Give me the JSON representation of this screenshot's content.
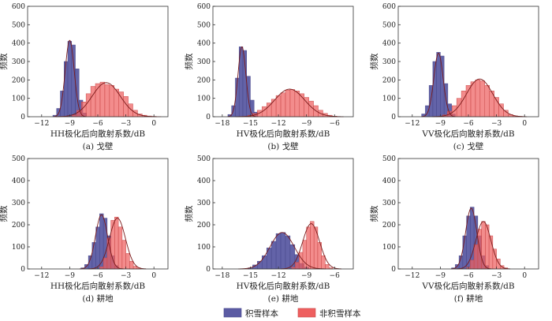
{
  "legend": {
    "items": [
      {
        "label": "积雪样本",
        "color": "#5b5ba3"
      },
      {
        "label": "非积雪样本",
        "color": "#ee5f5f"
      }
    ]
  },
  "colors": {
    "snow_bar": "#5b5ba3",
    "snow_edge": "#46468a",
    "nonsnow_bar": "#ee5f5f",
    "nonsnow_edge": "#c94a4a",
    "fit_curve": "#7a1a1a"
  },
  "chart_data": [
    {
      "type": "bar",
      "caption": "(a) 戈壁",
      "xlabel": "HH极化后向散射系数/dB",
      "ylabel": "频数",
      "xlim": [
        -13.5,
        1.5
      ],
      "ylim": [
        0,
        600
      ],
      "xticks": [
        -12,
        -9,
        -6,
        -3,
        0
      ],
      "yticks": [
        0,
        100,
        200,
        300,
        400,
        500,
        600
      ],
      "series": [
        {
          "name": "积雪样本",
          "bin_width": 0.4,
          "bins": [
            [
              -10.6,
              8
            ],
            [
              -10.2,
              45
            ],
            [
              -9.8,
              140
            ],
            [
              -9.4,
              300
            ],
            [
              -9.0,
              410
            ],
            [
              -8.6,
              390
            ],
            [
              -8.2,
              260
            ],
            [
              -7.8,
              90
            ],
            [
              -7.4,
              20
            ]
          ],
          "fit": {
            "mean": -9.0,
            "sd": 0.48,
            "peak": 415
          }
        },
        {
          "name": "非积雪样本",
          "bin_width": 0.5,
          "bins": [
            [
              -8.5,
              10
            ],
            [
              -8.0,
              35
            ],
            [
              -7.5,
              80
            ],
            [
              -7.0,
              125
            ],
            [
              -6.5,
              165
            ],
            [
              -6.0,
              180
            ],
            [
              -5.5,
              188
            ],
            [
              -5.0,
              175
            ],
            [
              -4.5,
              170
            ],
            [
              -4.0,
              150
            ],
            [
              -3.5,
              135
            ],
            [
              -3.0,
              110
            ],
            [
              -2.5,
              70
            ],
            [
              -2.0,
              35
            ],
            [
              -1.5,
              15
            ],
            [
              -1.0,
              8
            ],
            [
              -0.5,
              4
            ],
            [
              0.0,
              2
            ],
            [
              0.5,
              1
            ]
          ],
          "fit": {
            "mean": -5.1,
            "sd": 1.5,
            "peak": 185
          }
        }
      ]
    },
    {
      "type": "bar",
      "caption": "(b) 戈壁",
      "xlabel": "HV极化后向散射系数/dB",
      "ylabel": "频数",
      "xlim": [
        -19,
        -4
      ],
      "ylim": [
        0,
        600
      ],
      "xticks": [
        -18,
        -15,
        -12,
        -9,
        -6
      ],
      "yticks": [
        0,
        100,
        200,
        300,
        400,
        500,
        600
      ],
      "series": [
        {
          "name": "积雪样本",
          "bin_width": 0.4,
          "bins": [
            [
              -17.2,
              12
            ],
            [
              -16.8,
              60
            ],
            [
              -16.4,
              210
            ],
            [
              -16.0,
              380
            ],
            [
              -15.6,
              360
            ],
            [
              -15.2,
              220
            ],
            [
              -14.8,
              90
            ],
            [
              -14.4,
              25
            ]
          ],
          "fit": {
            "mean": -15.9,
            "sd": 0.42,
            "peak": 380
          }
        },
        {
          "name": "非积雪样本",
          "bin_width": 0.5,
          "bins": [
            [
              -15.0,
              8
            ],
            [
              -14.5,
              18
            ],
            [
              -14.0,
              35
            ],
            [
              -13.5,
              55
            ],
            [
              -13.0,
              75
            ],
            [
              -12.5,
              95
            ],
            [
              -12.0,
              115
            ],
            [
              -11.5,
              130
            ],
            [
              -11.0,
              145
            ],
            [
              -10.5,
              148
            ],
            [
              -10.0,
              140
            ],
            [
              -9.5,
              125
            ],
            [
              -9.0,
              105
            ],
            [
              -8.5,
              85
            ],
            [
              -8.0,
              60
            ],
            [
              -7.5,
              35
            ],
            [
              -7.0,
              18
            ],
            [
              -6.5,
              8
            ],
            [
              -6.0,
              3
            ]
          ],
          "fit": {
            "mean": -10.8,
            "sd": 1.6,
            "peak": 150
          }
        }
      ]
    },
    {
      "type": "bar",
      "caption": "(c) 戈壁",
      "xlabel": "VV极化后向散射系数/dB",
      "ylabel": "频数",
      "xlim": [
        -13.5,
        1.5
      ],
      "ylim": [
        0,
        600
      ],
      "xticks": [
        -12,
        -9,
        -6,
        -3,
        0
      ],
      "yticks": [
        0,
        100,
        200,
        300,
        400,
        500,
        600
      ],
      "series": [
        {
          "name": "积雪样本",
          "bin_width": 0.4,
          "bins": [
            [
              -10.8,
              15
            ],
            [
              -10.4,
              60
            ],
            [
              -10.0,
              170
            ],
            [
              -9.6,
              300
            ],
            [
              -9.2,
              350
            ],
            [
              -8.8,
              330
            ],
            [
              -8.4,
              180
            ],
            [
              -8.0,
              70
            ],
            [
              -7.6,
              15
            ]
          ],
          "fit": {
            "mean": -9.2,
            "sd": 0.5,
            "peak": 345
          }
        },
        {
          "name": "非积雪样本",
          "bin_width": 0.5,
          "bins": [
            [
              -8.5,
              10
            ],
            [
              -8.0,
              30
            ],
            [
              -7.5,
              60
            ],
            [
              -7.0,
              100
            ],
            [
              -6.5,
              140
            ],
            [
              -6.0,
              170
            ],
            [
              -5.5,
              190
            ],
            [
              -5.0,
              200
            ],
            [
              -4.5,
              195
            ],
            [
              -4.0,
              170
            ],
            [
              -3.5,
              140
            ],
            [
              -3.0,
              105
            ],
            [
              -2.5,
              70
            ],
            [
              -2.0,
              35
            ],
            [
              -1.5,
              12
            ],
            [
              -1.0,
              4
            ],
            [
              -0.5,
              2
            ]
          ],
          "fit": {
            "mean": -4.8,
            "sd": 1.4,
            "peak": 205
          }
        }
      ]
    },
    {
      "type": "bar",
      "caption": "(d) 耕地",
      "xlabel": "HH极化后向散射系数/dB",
      "ylabel": "频数",
      "xlim": [
        -13.5,
        1.5
      ],
      "ylim": [
        0,
        500
      ],
      "xticks": [
        -12,
        -9,
        -6,
        -3,
        0
      ],
      "yticks": [
        0,
        100,
        200,
        300,
        400,
        500
      ],
      "series": [
        {
          "name": "积雪样本",
          "bin_width": 0.4,
          "bins": [
            [
              -7.6,
              5
            ],
            [
              -7.2,
              20
            ],
            [
              -6.8,
              60
            ],
            [
              -6.4,
              120
            ],
            [
              -6.0,
              190
            ],
            [
              -5.6,
              250
            ],
            [
              -5.2,
              230
            ],
            [
              -4.8,
              150
            ],
            [
              -4.4,
              60
            ],
            [
              -4.0,
              15
            ]
          ],
          "fit": {
            "mean": -5.6,
            "sd": 0.65,
            "peak": 245
          }
        },
        {
          "name": "非积雪样本",
          "bin_width": 0.4,
          "bins": [
            [
              -5.6,
              10
            ],
            [
              -5.2,
              50
            ],
            [
              -4.8,
              140
            ],
            [
              -4.4,
              220
            ],
            [
              -4.0,
              235
            ],
            [
              -3.6,
              190
            ],
            [
              -3.2,
              130
            ],
            [
              -2.8,
              70
            ],
            [
              -2.4,
              35
            ],
            [
              -2.0,
              12
            ],
            [
              -1.6,
              4
            ]
          ],
          "fit": {
            "mean": -3.9,
            "sd": 0.85,
            "peak": 230
          }
        }
      ]
    },
    {
      "type": "bar",
      "caption": "(e) 耕地",
      "xlabel": "HV极化后向散射系数/dB",
      "ylabel": "频数",
      "xlim": [
        -19,
        -4
      ],
      "ylim": [
        0,
        500
      ],
      "xticks": [
        -18,
        -15,
        -12,
        -9,
        -6
      ],
      "yticks": [
        0,
        100,
        200,
        300,
        400,
        500
      ],
      "series": [
        {
          "name": "积雪样本",
          "bin_width": 0.5,
          "bins": [
            [
              -15.0,
              5
            ],
            [
              -14.5,
              18
            ],
            [
              -14.0,
              35
            ],
            [
              -13.5,
              60
            ],
            [
              -13.0,
              95
            ],
            [
              -12.5,
              125
            ],
            [
              -12.0,
              160
            ],
            [
              -11.5,
              165
            ],
            [
              -11.0,
              150
            ],
            [
              -10.5,
              110
            ],
            [
              -10.0,
              65
            ],
            [
              -9.5,
              25
            ],
            [
              -9.0,
              8
            ]
          ],
          "fit": {
            "mean": -11.6,
            "sd": 1.3,
            "peak": 165
          }
        },
        {
          "name": "非积雪样本",
          "bin_width": 0.4,
          "bins": [
            [
              -10.4,
              8
            ],
            [
              -10.0,
              30
            ],
            [
              -9.6,
              75
            ],
            [
              -9.2,
              130
            ],
            [
              -8.8,
              190
            ],
            [
              -8.4,
              215
            ],
            [
              -8.0,
              190
            ],
            [
              -7.6,
              120
            ],
            [
              -7.2,
              60
            ],
            [
              -6.8,
              20
            ],
            [
              -6.4,
              5
            ]
          ],
          "fit": {
            "mean": -8.5,
            "sd": 0.9,
            "peak": 205
          }
        }
      ]
    },
    {
      "type": "bar",
      "caption": "(f) 耕地",
      "xlabel": "VV极化后向散射系数/dB",
      "ylabel": "频数",
      "xlim": [
        -13.5,
        1.5
      ],
      "ylim": [
        0,
        500
      ],
      "xticks": [
        -12,
        -9,
        -6,
        -3,
        0
      ],
      "yticks": [
        0,
        100,
        200,
        300,
        400,
        500
      ],
      "series": [
        {
          "name": "积雪样本",
          "bin_width": 0.4,
          "bins": [
            [
              -7.6,
              5
            ],
            [
              -7.2,
              20
            ],
            [
              -6.8,
              60
            ],
            [
              -6.4,
              150
            ],
            [
              -6.0,
              240
            ],
            [
              -5.6,
              280
            ],
            [
              -5.2,
              240
            ],
            [
              -4.8,
              150
            ],
            [
              -4.4,
              60
            ],
            [
              -4.0,
              15
            ]
          ],
          "fit": {
            "mean": -5.7,
            "sd": 0.6,
            "peak": 275
          }
        },
        {
          "name": "非积雪样本",
          "bin_width": 0.4,
          "bins": [
            [
              -6.0,
              8
            ],
            [
              -5.6,
              40
            ],
            [
              -5.2,
              110
            ],
            [
              -4.8,
              180
            ],
            [
              -4.4,
              215
            ],
            [
              -4.0,
              200
            ],
            [
              -3.6,
              150
            ],
            [
              -3.2,
              90
            ],
            [
              -2.8,
              45
            ],
            [
              -2.4,
              15
            ],
            [
              -2.0,
              5
            ]
          ],
          "fit": {
            "mean": -4.4,
            "sd": 0.8,
            "peak": 215
          }
        }
      ]
    }
  ]
}
